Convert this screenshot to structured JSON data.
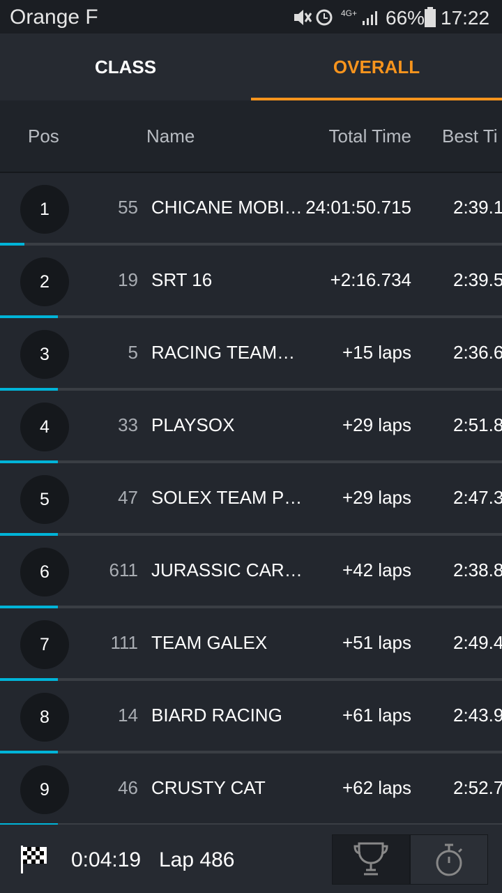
{
  "status_bar": {
    "carrier": "Orange F",
    "network": "4G+",
    "battery": "66%",
    "time": "17:22"
  },
  "tabs": [
    "CLASS",
    "OVERALL"
  ],
  "table": {
    "columns": [
      "Pos",
      "Name",
      "Total Time",
      "Best Ti"
    ],
    "rows": [
      [
        "1",
        "55",
        "CHICANE MOBI…",
        "24:01:50.715",
        "2:39.1"
      ],
      [
        "2",
        "19",
        "SRT 16",
        "+2:16.734",
        "2:39.5"
      ],
      [
        "3",
        "5",
        "RACING TEAM…",
        "+15 laps",
        "2:36.6"
      ],
      [
        "4",
        "33",
        "PLAYSOX",
        "+29 laps",
        "2:51.8"
      ],
      [
        "5",
        "47",
        "SOLEX TEAM P…",
        "+29 laps",
        "2:47.3"
      ],
      [
        "6",
        "611",
        "JURASSIC CAR…",
        "+42 laps",
        "2:38.8"
      ],
      [
        "7",
        "111",
        "TEAM GALEX",
        "+51 laps",
        "2:49.4"
      ],
      [
        "8",
        "14",
        "BIARD RACING",
        "+61 laps",
        "2:43.9"
      ],
      [
        "9",
        "46",
        "CRUSTY CAT",
        "+62 laps",
        "2:52.7"
      ]
    ]
  },
  "footer": {
    "elapsed": "0:04:19",
    "lap": "Lap 486"
  }
}
